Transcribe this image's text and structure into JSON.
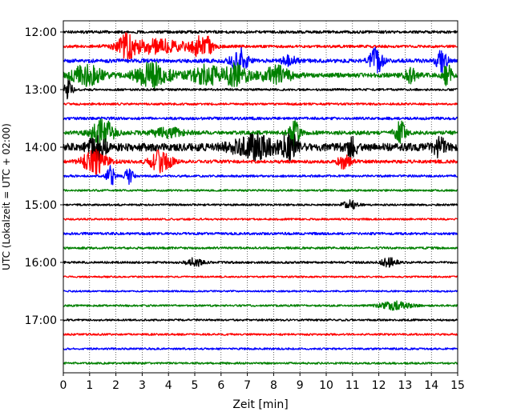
{
  "chart_data": {
    "type": "line",
    "title": "",
    "xlabel": "Zeit  [min]",
    "ylabel": "UTC (Lokalzeit = UTC + 02:00)",
    "xlim": [
      0,
      15
    ],
    "x_ticks": [
      0,
      1,
      2,
      3,
      4,
      5,
      6,
      7,
      8,
      9,
      10,
      11,
      12,
      13,
      14,
      15
    ],
    "y_ticks": [
      "12:00",
      "13:00",
      "14:00",
      "15:00",
      "16:00",
      "17:00"
    ],
    "start_time": "12:00",
    "trace_interval_min": 15,
    "grid": "vertical dotted",
    "legend": "none",
    "color_cycle": [
      "#000000",
      "#ff0000",
      "#0000ff",
      "#008000"
    ],
    "series": [
      {
        "start": "12:00",
        "noise": 0.1,
        "events": []
      },
      {
        "start": "12:15",
        "noise": 0.1,
        "events": [
          [
            2.4,
            0.6,
            0.7
          ],
          [
            3.5,
            2.6,
            0.5
          ],
          [
            5.3,
            0.7,
            0.9
          ]
        ]
      },
      {
        "start": "12:30",
        "noise": 0.14,
        "events": [
          [
            6.7,
            0.6,
            0.9
          ],
          [
            11.9,
            0.5,
            0.9
          ],
          [
            14.4,
            0.4,
            0.8
          ],
          [
            8.6,
            0.5,
            0.4
          ]
        ]
      },
      {
        "start": "12:45",
        "noise": 0.16,
        "events": [
          [
            0.9,
            1.2,
            0.7
          ],
          [
            3.4,
            1.3,
            0.9
          ],
          [
            5.4,
            1.2,
            0.7
          ],
          [
            6.6,
            0.9,
            0.8
          ],
          [
            8.1,
            1.2,
            0.6
          ],
          [
            13.2,
            0.5,
            0.5
          ],
          [
            14.6,
            0.3,
            0.9
          ]
        ]
      },
      {
        "start": "13:00",
        "noise": 0.08,
        "events": [
          [
            0.2,
            0.3,
            0.7
          ]
        ]
      },
      {
        "start": "13:15",
        "noise": 0.08,
        "events": []
      },
      {
        "start": "13:30",
        "noise": 0.1,
        "events": []
      },
      {
        "start": "13:45",
        "noise": 0.14,
        "events": [
          [
            1.5,
            0.8,
            1.0
          ],
          [
            8.8,
            0.4,
            0.9
          ],
          [
            12.8,
            0.4,
            0.9
          ],
          [
            4.0,
            1.5,
            0.3
          ]
        ]
      },
      {
        "start": "14:00",
        "noise": 0.28,
        "events": [
          [
            1.3,
            0.6,
            1.0
          ],
          [
            7.2,
            1.5,
            0.8
          ],
          [
            8.6,
            0.7,
            0.9
          ],
          [
            11.0,
            0.5,
            0.6
          ],
          [
            14.3,
            0.5,
            0.6
          ]
        ]
      },
      {
        "start": "14:15",
        "noise": 0.12,
        "events": [
          [
            1.2,
            0.9,
            0.9
          ],
          [
            3.7,
            0.8,
            0.8
          ],
          [
            10.7,
            0.5,
            0.5
          ]
        ]
      },
      {
        "start": "14:30",
        "noise": 0.08,
        "events": [
          [
            1.8,
            0.3,
            0.8
          ],
          [
            2.5,
            0.3,
            0.6
          ]
        ]
      },
      {
        "start": "14:45",
        "noise": 0.07,
        "events": []
      },
      {
        "start": "15:00",
        "noise": 0.07,
        "events": [
          [
            10.9,
            0.6,
            0.3
          ]
        ]
      },
      {
        "start": "15:15",
        "noise": 0.07,
        "events": []
      },
      {
        "start": "15:30",
        "noise": 0.09,
        "events": []
      },
      {
        "start": "15:45",
        "noise": 0.08,
        "events": []
      },
      {
        "start": "16:00",
        "noise": 0.08,
        "events": [
          [
            5.0,
            0.6,
            0.3
          ],
          [
            12.4,
            0.6,
            0.3
          ]
        ]
      },
      {
        "start": "16:15",
        "noise": 0.06,
        "events": []
      },
      {
        "start": "16:30",
        "noise": 0.06,
        "events": []
      },
      {
        "start": "16:45",
        "noise": 0.07,
        "events": [
          [
            12.6,
            1.2,
            0.3
          ]
        ]
      },
      {
        "start": "17:00",
        "noise": 0.07,
        "events": []
      },
      {
        "start": "17:15",
        "noise": 0.07,
        "events": []
      },
      {
        "start": "17:30",
        "noise": 0.07,
        "events": []
      },
      {
        "start": "17:45",
        "noise": 0.07,
        "events": []
      }
    ]
  }
}
